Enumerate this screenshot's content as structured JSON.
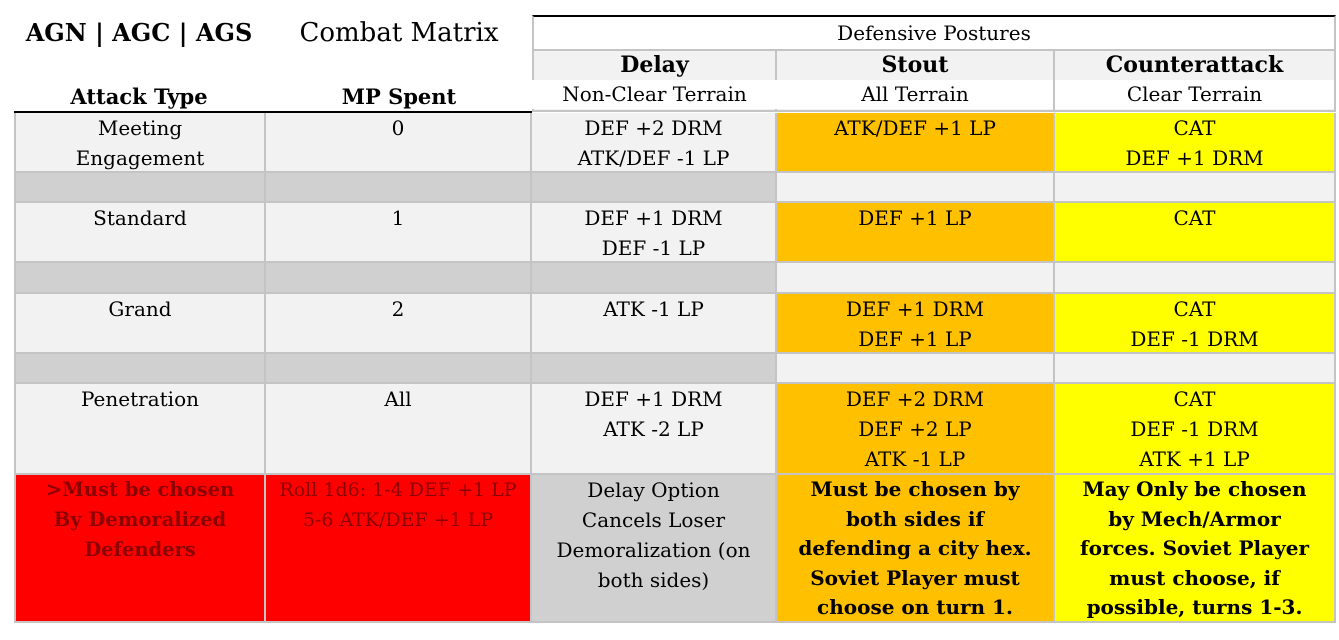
{
  "header": {
    "title_groups": "AGN | AGC | AGS",
    "title_matrix": "Combat Matrix",
    "defensive_postures": "Defensive Postures",
    "col_attack_type": "Attack Type",
    "col_mp_spent": "MP Spent",
    "delay": {
      "name": "Delay",
      "terrain": "Non-Clear Terrain"
    },
    "stout": {
      "name": "Stout",
      "terrain": "All Terrain"
    },
    "counterattack": {
      "name": "Counterattack",
      "terrain": "Clear Terrain"
    }
  },
  "rows": [
    {
      "attack_type": [
        "Meeting",
        "Engagement"
      ],
      "mp": "0",
      "delay": [
        "DEF +2 DRM",
        "ATK/DEF -1 LP"
      ],
      "stout": [
        "ATK/DEF +1 LP"
      ],
      "counterattack": [
        "CAT",
        "DEF +1 DRM"
      ]
    },
    {
      "attack_type": [
        "Standard"
      ],
      "mp": "1",
      "delay": [
        "DEF +1 DRM",
        "DEF -1 LP"
      ],
      "stout": [
        "DEF +1 LP"
      ],
      "counterattack": [
        "CAT"
      ]
    },
    {
      "attack_type": [
        "Grand"
      ],
      "mp": "2",
      "delay": [
        "ATK -1 LP"
      ],
      "stout": [
        "DEF +1 DRM",
        "DEF +1 LP"
      ],
      "counterattack": [
        "CAT",
        "DEF -1 DRM"
      ]
    },
    {
      "attack_type": [
        "Penetration"
      ],
      "mp": "All",
      "delay": [
        "DEF +1 DRM",
        "ATK -2 LP"
      ],
      "stout": [
        "DEF +2 DRM",
        "DEF +2 LP",
        "ATK -1 LP"
      ],
      "counterattack": [
        "CAT",
        "DEF -1 DRM",
        "ATK +1 LP"
      ]
    }
  ],
  "notes": {
    "attack_type": [
      ">Must be chosen",
      "By Demoralized",
      "Defenders"
    ],
    "mp": [
      "Roll 1d6: 1-4 DEF +1 LP",
      "5-6 ATK/DEF +1 LP"
    ],
    "delay": [
      "Delay Option",
      "Cancels Loser",
      "Demoralization (on",
      "both sides)"
    ],
    "stout": [
      "Must be chosen by",
      "both sides if",
      "defending a city hex.",
      "Soviet Player must",
      "choose on turn 1."
    ],
    "counterattack": [
      "May Only be chosen",
      "by Mech/Armor",
      "forces. Soviet Player",
      "must choose, if",
      "possible, turns 1-3."
    ]
  },
  "colors": {
    "light_gray": "#f2f2f2",
    "gray": "#d0d0d0",
    "orange": "#ffc000",
    "yellow": "#ffff00",
    "red": "#ff0000"
  }
}
